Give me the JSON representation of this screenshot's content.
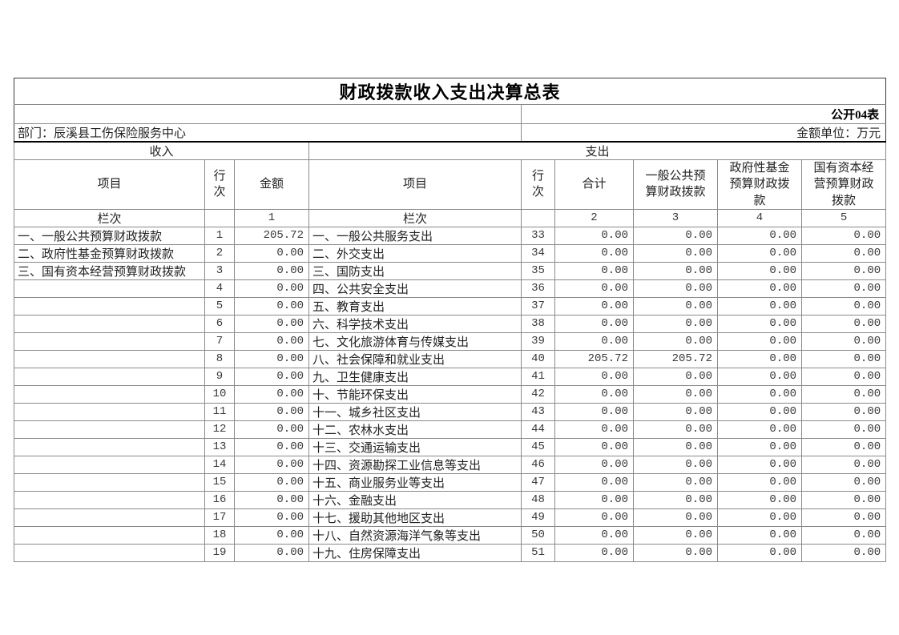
{
  "page": {
    "title": "财政拨款收入支出决算总表",
    "table_code": "公开04表",
    "department": "部门：辰溪县工伤保险服务中心",
    "unit": "金额单位：万元"
  },
  "income": {
    "section_label": "收入",
    "columns": {
      "item": "项目",
      "line": "行次",
      "amount": "金额"
    },
    "lanci_label": "栏次",
    "lanci_numbers": [
      "1"
    ],
    "rows": [
      {
        "item": "一、一般公共预算财政拨款",
        "line": "1",
        "amount": "205.72"
      },
      {
        "item": "二、政府性基金预算财政拨款",
        "line": "2",
        "amount": "0.00"
      },
      {
        "item": "三、国有资本经营预算财政拨款",
        "line": "3",
        "amount": "0.00"
      },
      {
        "item": "",
        "line": "4",
        "amount": "0.00"
      },
      {
        "item": "",
        "line": "5",
        "amount": "0.00"
      },
      {
        "item": "",
        "line": "6",
        "amount": "0.00"
      },
      {
        "item": "",
        "line": "7",
        "amount": "0.00"
      },
      {
        "item": "",
        "line": "8",
        "amount": "0.00"
      },
      {
        "item": "",
        "line": "9",
        "amount": "0.00"
      },
      {
        "item": "",
        "line": "10",
        "amount": "0.00"
      },
      {
        "item": "",
        "line": "11",
        "amount": "0.00"
      },
      {
        "item": "",
        "line": "12",
        "amount": "0.00"
      },
      {
        "item": "",
        "line": "13",
        "amount": "0.00"
      },
      {
        "item": "",
        "line": "14",
        "amount": "0.00"
      },
      {
        "item": "",
        "line": "15",
        "amount": "0.00"
      },
      {
        "item": "",
        "line": "16",
        "amount": "0.00"
      },
      {
        "item": "",
        "line": "17",
        "amount": "0.00"
      },
      {
        "item": "",
        "line": "18",
        "amount": "0.00"
      },
      {
        "item": "",
        "line": "19",
        "amount": "0.00"
      }
    ]
  },
  "expenditure": {
    "section_label": "支出",
    "columns": {
      "item": "项目",
      "line": "行次",
      "total": "合计",
      "general": "一般公共预算财政拨款",
      "govfund": "政府性基金预算财政拨款",
      "statecap": "国有资本经营预算财政拨款"
    },
    "lanci_label": "栏次",
    "lanci_numbers": [
      "2",
      "3",
      "4",
      "5"
    ],
    "rows": [
      {
        "item": "一、一般公共服务支出",
        "line": "33",
        "total": "0.00",
        "general": "0.00",
        "govfund": "0.00",
        "statecap": "0.00"
      },
      {
        "item": "二、外交支出",
        "line": "34",
        "total": "0.00",
        "general": "0.00",
        "govfund": "0.00",
        "statecap": "0.00"
      },
      {
        "item": "三、国防支出",
        "line": "35",
        "total": "0.00",
        "general": "0.00",
        "govfund": "0.00",
        "statecap": "0.00"
      },
      {
        "item": "四、公共安全支出",
        "line": "36",
        "total": "0.00",
        "general": "0.00",
        "govfund": "0.00",
        "statecap": "0.00"
      },
      {
        "item": "五、教育支出",
        "line": "37",
        "total": "0.00",
        "general": "0.00",
        "govfund": "0.00",
        "statecap": "0.00"
      },
      {
        "item": "六、科学技术支出",
        "line": "38",
        "total": "0.00",
        "general": "0.00",
        "govfund": "0.00",
        "statecap": "0.00"
      },
      {
        "item": "七、文化旅游体育与传媒支出",
        "line": "39",
        "total": "0.00",
        "general": "0.00",
        "govfund": "0.00",
        "statecap": "0.00"
      },
      {
        "item": "八、社会保障和就业支出",
        "line": "40",
        "total": "205.72",
        "general": "205.72",
        "govfund": "0.00",
        "statecap": "0.00"
      },
      {
        "item": "九、卫生健康支出",
        "line": "41",
        "total": "0.00",
        "general": "0.00",
        "govfund": "0.00",
        "statecap": "0.00"
      },
      {
        "item": "十、节能环保支出",
        "line": "42",
        "total": "0.00",
        "general": "0.00",
        "govfund": "0.00",
        "statecap": "0.00"
      },
      {
        "item": "十一、城乡社区支出",
        "line": "43",
        "total": "0.00",
        "general": "0.00",
        "govfund": "0.00",
        "statecap": "0.00"
      },
      {
        "item": "十二、农林水支出",
        "line": "44",
        "total": "0.00",
        "general": "0.00",
        "govfund": "0.00",
        "statecap": "0.00"
      },
      {
        "item": "十三、交通运输支出",
        "line": "45",
        "total": "0.00",
        "general": "0.00",
        "govfund": "0.00",
        "statecap": "0.00"
      },
      {
        "item": "十四、资源勘探工业信息等支出",
        "line": "46",
        "total": "0.00",
        "general": "0.00",
        "govfund": "0.00",
        "statecap": "0.00"
      },
      {
        "item": "十五、商业服务业等支出",
        "line": "47",
        "total": "0.00",
        "general": "0.00",
        "govfund": "0.00",
        "statecap": "0.00"
      },
      {
        "item": "十六、金融支出",
        "line": "48",
        "total": "0.00",
        "general": "0.00",
        "govfund": "0.00",
        "statecap": "0.00"
      },
      {
        "item": "十七、援助其他地区支出",
        "line": "49",
        "total": "0.00",
        "general": "0.00",
        "govfund": "0.00",
        "statecap": "0.00"
      },
      {
        "item": "十八、自然资源海洋气象等支出",
        "line": "50",
        "total": "0.00",
        "general": "0.00",
        "govfund": "0.00",
        "statecap": "0.00"
      },
      {
        "item": "十九、住房保障支出",
        "line": "51",
        "total": "0.00",
        "general": "0.00",
        "govfund": "0.00",
        "statecap": "0.00"
      }
    ]
  }
}
